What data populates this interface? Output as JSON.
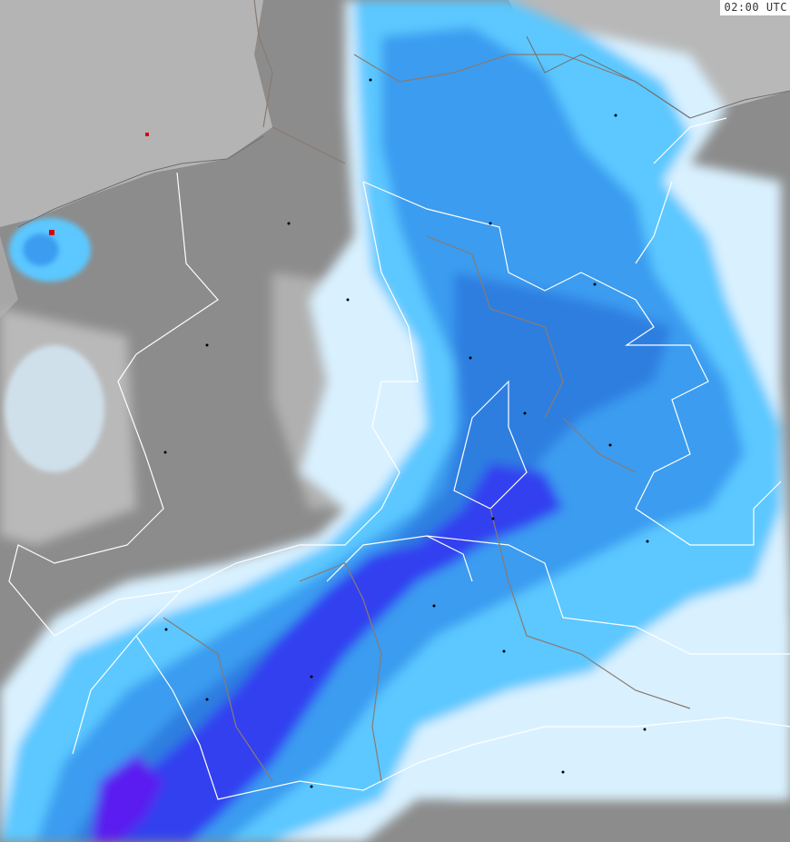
{
  "map": {
    "type": "radar-precipitation-map",
    "timestamp": "02:00 UTC",
    "colors": {
      "land": "#8c8c8c",
      "sea": "#b4b4b4",
      "cloud_light": "#c8c8c8",
      "precip_very_light": "#d9f1ff",
      "precip_light": "#5cc8ff",
      "precip_moderate": "#3a9cf0",
      "precip_medium": "#2f7ee0",
      "precip_heavy": "#3040f0",
      "precip_very_heavy": "#5a1ef0",
      "border": "#ffffff",
      "state_border": "#8a7a70"
    }
  }
}
